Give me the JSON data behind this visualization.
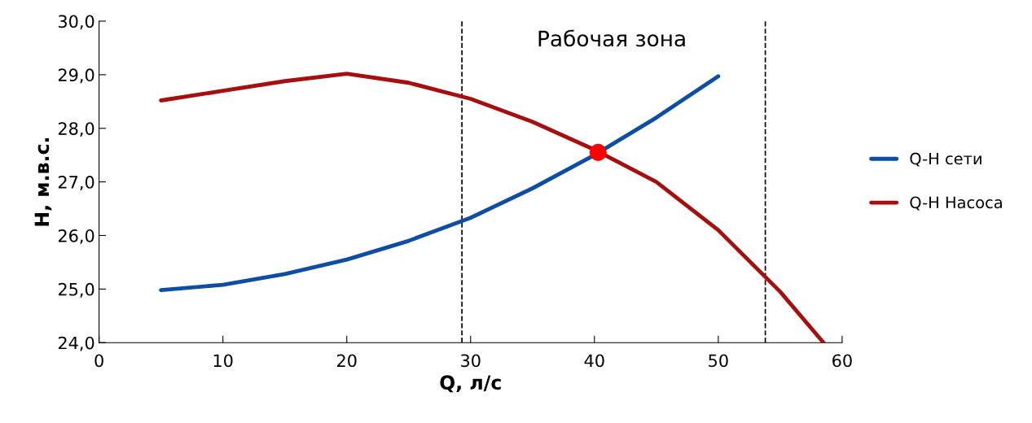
{
  "chart_data": {
    "type": "line",
    "xlabel": "Q, л/с",
    "ylabel": "H, м.в.с.",
    "xlim": [
      0,
      60
    ],
    "xticks": [
      0,
      10,
      20,
      30,
      40,
      50,
      60
    ],
    "ylim": [
      24.0,
      30.0
    ],
    "yticks": [
      {
        "value": 24,
        "label": "24,0"
      },
      {
        "value": 25,
        "label": "25,0"
      },
      {
        "value": 26,
        "label": "26,0"
      },
      {
        "value": 27,
        "label": "27,0"
      },
      {
        "value": 28,
        "label": "28,0"
      },
      {
        "value": 29,
        "label": "29,0"
      },
      {
        "value": 30,
        "label": "30,0"
      }
    ],
    "grid": false,
    "legend": "right",
    "marker": "none",
    "line_style": "solid",
    "series": [
      {
        "name": "Q-H сети",
        "color": "#0e4da4",
        "x": [
          5,
          10,
          15,
          20,
          25,
          30,
          35,
          40,
          45,
          50
        ],
        "values": [
          24.98,
          25.08,
          25.28,
          25.55,
          25.9,
          26.33,
          26.88,
          27.5,
          28.2,
          28.97
        ]
      },
      {
        "name": "Q-H Насоса",
        "color": "#a50f0f",
        "x": [
          5,
          10,
          15,
          20,
          25,
          30,
          35,
          40,
          45,
          50,
          55,
          58.5
        ],
        "values": [
          28.52,
          28.7,
          28.88,
          29.02,
          28.85,
          28.55,
          28.12,
          27.6,
          27.0,
          26.1,
          24.95,
          24.0
        ]
      },
      {
        "type": "scatter",
        "color": "#ff0000",
        "x": [
          40.3
        ],
        "values": [
          27.55
        ],
        "marker": "circle"
      }
    ],
    "ref_lines": [
      {
        "axis": "x",
        "value": 29.3,
        "color": "#000000",
        "line_style": "dashed"
      },
      {
        "axis": "x",
        "value": 53.8,
        "color": "#000000",
        "line_style": "dashed"
      }
    ],
    "annotations": [
      "Рабочая зона"
    ]
  }
}
